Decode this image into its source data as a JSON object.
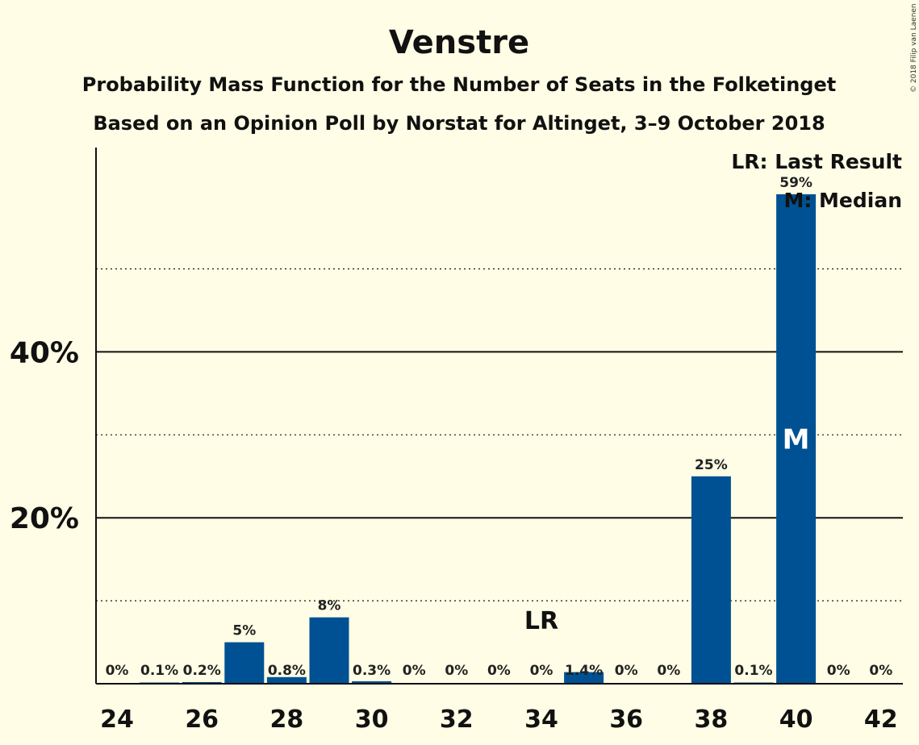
{
  "chart_data": {
    "type": "bar",
    "title": "Venstre",
    "subtitle_1": "Probability Mass Function for the Number of Seats in the Folketinget",
    "subtitle_2": "Based on an Opinion Poll by Norstat for Altinget, 3–9 October 2018",
    "copyright": "© 2018 Filip van Laenen",
    "x": [
      24,
      25,
      26,
      27,
      28,
      29,
      30,
      31,
      32,
      33,
      34,
      35,
      36,
      37,
      38,
      39,
      40,
      41,
      42
    ],
    "values": [
      0,
      0.1,
      0.2,
      5,
      0.8,
      8,
      0.3,
      0,
      0,
      0,
      0,
      1.4,
      0,
      0,
      25,
      0.1,
      59,
      0,
      0
    ],
    "value_labels": [
      "0%",
      "0.1%",
      "0.2%",
      "5%",
      "0.8%",
      "8%",
      "0.3%",
      "0%",
      "0%",
      "0%",
      "0%",
      "1.4%",
      "0%",
      "0%",
      "25%",
      "0.1%",
      "59%",
      "0%",
      "0%"
    ],
    "x_tick_labels": [
      "24",
      "26",
      "28",
      "30",
      "32",
      "34",
      "36",
      "38",
      "40",
      "42"
    ],
    "x_tick_values": [
      24,
      26,
      28,
      30,
      32,
      34,
      36,
      38,
      40,
      42
    ],
    "y_tick_labels": [
      "20%",
      "40%"
    ],
    "y_tick_values": [
      20,
      40
    ],
    "y_dotted_gridlines": [
      10,
      30,
      50
    ],
    "ylim": [
      0,
      64.5
    ],
    "xlabel": "",
    "ylabel": "",
    "last_result_seat": 34,
    "last_result_label": "LR",
    "median_seat": 40,
    "median_label": "M",
    "legend": [
      "LR: Last Result",
      "M: Median"
    ],
    "legend_position": "top-right",
    "colors": {
      "bar": "#005193",
      "background": "#FFFDE5",
      "text": "#111111"
    }
  }
}
